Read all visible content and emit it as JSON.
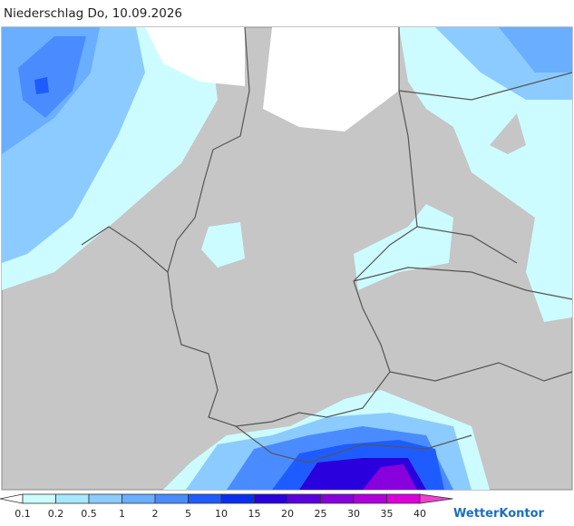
{
  "title": "Niederschlag Do, 10.09.2026",
  "legend": {
    "labels": [
      "0.1",
      "0.2",
      "0.5",
      "1",
      "2",
      "5",
      "10",
      "15",
      "20",
      "25",
      "30",
      "35",
      "40"
    ],
    "colors": [
      "#ffffff",
      "#ccfcff",
      "#a6e8ff",
      "#8ccbff",
      "#6aaeff",
      "#4a8cff",
      "#1f5cff",
      "#0a2ef0",
      "#2a00dc",
      "#5a00dc",
      "#8800dc",
      "#b000dc",
      "#dc00dc",
      "#f040d0"
    ]
  },
  "brand": "WetterKontor"
}
